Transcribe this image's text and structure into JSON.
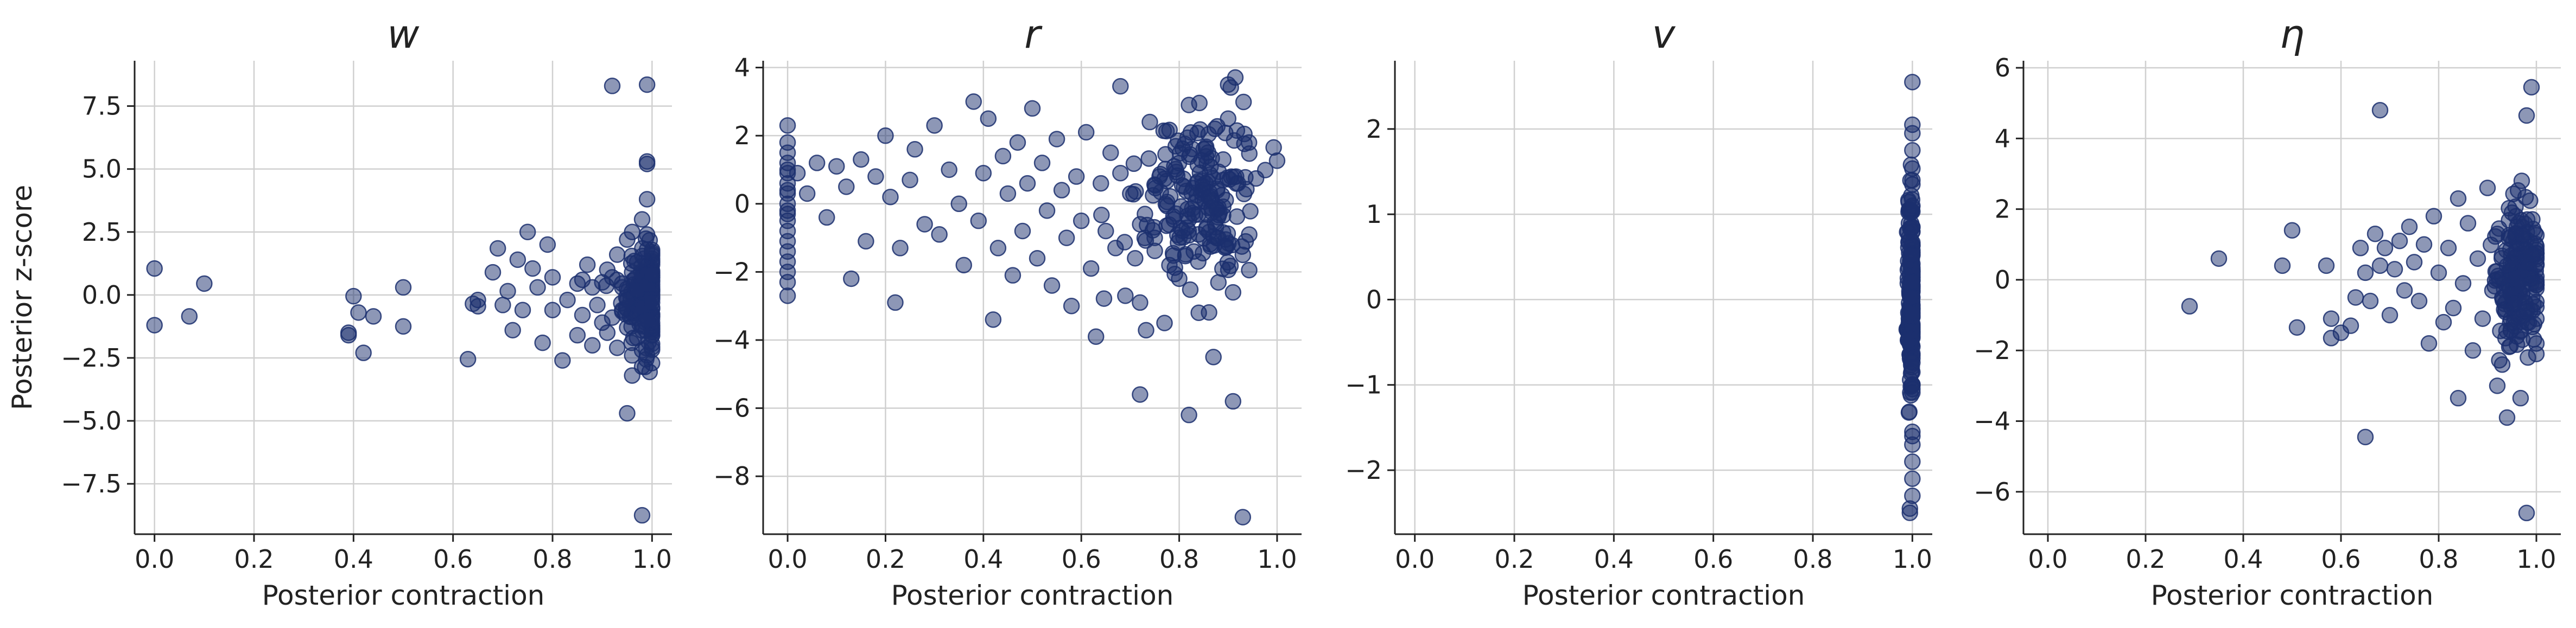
{
  "figure": {
    "ylabel": "Posterior z-score",
    "point_color": "#1b2f6e"
  },
  "chart_data": [
    {
      "type": "scatter",
      "title": "w",
      "xlabel": "Posterior contraction",
      "ylabel": "Posterior z-score",
      "xlim": [
        -0.04,
        1.04
      ],
      "ylim": [
        -9.5,
        9.3
      ],
      "xticks": [
        0.0,
        0.2,
        0.4,
        0.6,
        0.8,
        1.0
      ],
      "xtick_labels": [
        "0.0",
        "0.2",
        "0.4",
        "0.6",
        "0.8",
        "1.0"
      ],
      "yticks": [
        -7.5,
        -5.0,
        -2.5,
        0.0,
        2.5,
        5.0,
        7.5
      ],
      "ytick_labels": [
        "−7.5",
        "−5.0",
        "−2.5",
        "0.0",
        "2.5",
        "5.0",
        "7.5"
      ],
      "grid": true,
      "x": [
        0.0,
        0.0,
        0.07,
        0.1,
        0.39,
        0.39,
        0.4,
        0.41,
        0.42,
        0.44,
        0.5,
        0.5,
        0.63,
        0.64,
        0.65,
        0.65,
        0.68,
        0.69,
        0.7,
        0.71,
        0.72,
        0.73,
        0.74,
        0.75,
        0.76,
        0.77,
        0.78,
        0.79,
        0.8,
        0.8,
        0.82,
        0.83,
        0.85,
        0.85,
        0.86,
        0.86,
        0.87,
        0.88,
        0.88,
        0.89,
        0.9,
        0.9,
        0.91,
        0.91,
        0.92,
        0.92,
        0.93,
        0.93,
        0.94,
        0.94,
        0.95,
        0.95,
        0.95,
        0.96,
        0.96,
        0.96,
        0.97,
        0.97,
        0.97,
        0.98,
        0.98,
        0.98,
        0.99,
        0.99,
        0.99,
        0.99,
        0.99,
        0.99,
        1.0,
        1.0,
        0.92,
        0.99,
        0.99,
        0.99,
        0.95,
        0.98,
        0.98,
        0.96
      ],
      "y": [
        1.05,
        -1.2,
        -0.85,
        0.45,
        -1.5,
        -1.6,
        -0.05,
        -0.7,
        -2.3,
        -0.85,
        0.3,
        -1.25,
        -2.55,
        -0.35,
        -0.45,
        -0.2,
        0.9,
        1.85,
        -0.4,
        0.15,
        -1.4,
        1.4,
        -0.6,
        2.5,
        1.05,
        0.3,
        -1.9,
        2.0,
        -0.6,
        0.7,
        -2.6,
        -0.2,
        0.45,
        -1.6,
        0.6,
        -0.8,
        1.2,
        -2.0,
        0.3,
        -0.4,
        0.5,
        -1.1,
        1.0,
        -1.5,
        0.7,
        -0.9,
        -2.1,
        1.6,
        0.3,
        -0.6,
        2.2,
        -0.2,
        -1.3,
        0.9,
        -2.4,
        2.5,
        1.3,
        -1.7,
        0.2,
        -0.5,
        3.0,
        -2.2,
        1.8,
        -1.0,
        0.4,
        2.4,
        -2.4,
        3.8,
        -0.3,
        0.8,
        8.3,
        8.35,
        5.3,
        5.2,
        -4.7,
        -8.75,
        -2.85,
        -3.2
      ],
      "cluster": {
        "x_center": 0.985,
        "x_spread": 0.022,
        "y_center": 0.0,
        "y_spread": 1.0,
        "count": 170
      }
    },
    {
      "type": "scatter",
      "title": "r",
      "xlabel": "Posterior contraction",
      "ylabel": "",
      "xlim": [
        -0.05,
        1.05
      ],
      "ylim": [
        -9.7,
        4.2
      ],
      "xticks": [
        0.0,
        0.2,
        0.4,
        0.6,
        0.8,
        1.0
      ],
      "xtick_labels": [
        "0.0",
        "0.2",
        "0.4",
        "0.6",
        "0.8",
        "1.0"
      ],
      "yticks": [
        -8,
        -6,
        -4,
        -2,
        0,
        2,
        4
      ],
      "ytick_labels": [
        "−8",
        "−6",
        "−4",
        "−2",
        "0",
        "2",
        "4"
      ],
      "grid": true,
      "x": [
        0.0,
        0.0,
        0.0,
        0.0,
        0.0,
        0.0,
        0.0,
        0.0,
        0.0,
        0.0,
        0.0,
        0.0,
        0.0,
        0.0,
        0.0,
        0.0,
        0.0,
        0.0,
        0.0,
        0.0,
        0.02,
        0.04,
        0.06,
        0.08,
        0.1,
        0.12,
        0.13,
        0.15,
        0.16,
        0.18,
        0.2,
        0.21,
        0.22,
        0.23,
        0.25,
        0.26,
        0.28,
        0.3,
        0.31,
        0.33,
        0.35,
        0.36,
        0.38,
        0.39,
        0.4,
        0.41,
        0.42,
        0.43,
        0.44,
        0.45,
        0.46,
        0.47,
        0.48,
        0.49,
        0.5,
        0.51,
        0.52,
        0.53,
        0.54,
        0.55,
        0.56,
        0.57,
        0.58,
        0.59,
        0.6,
        0.61,
        0.62,
        0.63,
        0.64,
        0.65,
        0.66,
        0.67,
        0.68,
        0.69,
        0.7,
        0.71,
        0.72,
        0.73,
        0.74,
        0.75,
        0.76,
        0.77,
        0.78,
        0.79,
        0.8,
        0.81,
        0.82,
        0.83,
        0.84,
        0.85,
        0.86,
        0.87,
        0.88,
        0.89,
        0.9,
        0.91,
        0.92,
        0.93,
        0.68,
        0.9,
        0.82,
        0.93,
        0.91,
        0.72
      ],
      "y": [
        2.3,
        1.8,
        1.5,
        1.2,
        0.9,
        0.6,
        0.3,
        0.0,
        -0.3,
        -0.5,
        -0.8,
        -1.1,
        -1.7,
        -2.0,
        -2.3,
        -2.7,
        1.0,
        0.4,
        -0.2,
        -1.4,
        0.9,
        0.3,
        1.2,
        -0.4,
        1.1,
        0.5,
        -2.2,
        1.3,
        -1.1,
        0.8,
        2.0,
        0.2,
        -2.9,
        -1.3,
        0.7,
        1.6,
        -0.6,
        2.3,
        -0.9,
        1.0,
        0.0,
        -1.8,
        3.0,
        -0.5,
        0.9,
        2.5,
        -3.4,
        -1.3,
        1.4,
        0.3,
        -2.1,
        1.8,
        -0.8,
        0.6,
        2.8,
        -1.6,
        1.2,
        -0.2,
        -2.4,
        1.9,
        0.4,
        -1.0,
        -3.0,
        0.8,
        -0.5,
        2.1,
        -1.9,
        -3.9,
        0.6,
        -0.8,
        1.5,
        -1.3,
        0.9,
        -2.7,
        0.3,
        -1.6,
        -2.9,
        -0.3,
        2.4,
        -1.0,
        0.8,
        -3.5,
        -1.8,
        1.1,
        -2.2,
        0.5,
        2.9,
        -1.4,
        -3.2,
        1.6,
        0.2,
        -4.5,
        -1.0,
        1.3,
        2.5,
        -2.6,
        0.6,
        -1.5,
        3.45,
        3.5,
        -6.2,
        -9.2,
        -5.8,
        -5.6
      ],
      "cluster": {
        "x_center": 0.84,
        "x_spread": 0.06,
        "y_center": 0.2,
        "y_spread": 1.3,
        "count": 190
      }
    },
    {
      "type": "scatter",
      "title": "v",
      "xlabel": "Posterior contraction",
      "ylabel": "",
      "xlim": [
        -0.04,
        1.04
      ],
      "ylim": [
        -2.75,
        2.8
      ],
      "xticks": [
        0.0,
        0.2,
        0.4,
        0.6,
        0.8,
        1.0
      ],
      "xtick_labels": [
        "0.0",
        "0.2",
        "0.4",
        "0.6",
        "0.8",
        "1.0"
      ],
      "yticks": [
        -2,
        -1,
        0,
        1,
        2
      ],
      "ytick_labels": [
        "−2",
        "−1",
        "0",
        "1",
        "2"
      ],
      "grid": true,
      "x": [
        1.0,
        1.0,
        1.0,
        1.0,
        1.0,
        1.0,
        1.0,
        1.0,
        1.0,
        1.0,
        1.0,
        1.0,
        0.995,
        0.995,
        1.0,
        1.0
      ],
      "y": [
        2.55,
        2.05,
        1.95,
        1.75,
        1.4,
        1.35,
        0.85,
        -1.55,
        -1.6,
        -1.9,
        -2.1,
        -2.3,
        -2.45,
        -2.5,
        -1.7,
        1.1
      ],
      "cluster": {
        "x_center": 0.998,
        "x_spread": 0.004,
        "y_center": 0.0,
        "y_spread": 0.6,
        "count": 230
      }
    },
    {
      "type": "scatter",
      "title": "η",
      "xlabel": "Posterior contraction",
      "ylabel": "",
      "xlim": [
        -0.05,
        1.05
      ],
      "ylim": [
        -7.2,
        6.2
      ],
      "xticks": [
        0.0,
        0.2,
        0.4,
        0.6,
        0.8,
        1.0
      ],
      "xtick_labels": [
        "0.0",
        "0.2",
        "0.4",
        "0.6",
        "0.8",
        "1.0"
      ],
      "yticks": [
        -6,
        -4,
        -2,
        0,
        2,
        4,
        6
      ],
      "ytick_labels": [
        "−6",
        "−4",
        "−2",
        "0",
        "2",
        "4",
        "6"
      ],
      "grid": true,
      "x": [
        0.29,
        0.35,
        0.48,
        0.5,
        0.51,
        0.57,
        0.58,
        0.58,
        0.6,
        0.62,
        0.63,
        0.64,
        0.65,
        0.66,
        0.67,
        0.68,
        0.69,
        0.7,
        0.71,
        0.72,
        0.73,
        0.74,
        0.75,
        0.76,
        0.77,
        0.78,
        0.79,
        0.8,
        0.81,
        0.82,
        0.83,
        0.84,
        0.85,
        0.86,
        0.87,
        0.88,
        0.89,
        0.9,
        0.91,
        0.92,
        0.93,
        0.94,
        0.95,
        0.96,
        0.97,
        0.98,
        0.99,
        1.0,
        0.65,
        0.68,
        0.84,
        0.92,
        0.94,
        0.98,
        0.98,
        0.99
      ],
      "y": [
        -0.75,
        0.6,
        0.4,
        1.4,
        -1.35,
        0.4,
        -1.1,
        -1.65,
        -1.5,
        -1.3,
        -0.5,
        0.9,
        0.2,
        -0.6,
        1.3,
        0.4,
        0.9,
        -1.0,
        0.3,
        1.1,
        -0.3,
        1.5,
        0.5,
        -0.6,
        1.0,
        -1.8,
        1.8,
        0.2,
        -1.2,
        0.9,
        -0.8,
        2.3,
        -0.1,
        1.6,
        -2.0,
        0.6,
        -1.1,
        2.6,
        -0.3,
        1.3,
        -2.4,
        0.4,
        1.9,
        -1.6,
        2.8,
        -0.9,
        0.7,
        -2.1,
        -4.45,
        4.8,
        -3.35,
        -3.0,
        -3.9,
        4.65,
        -6.6,
        5.45
      ],
      "cluster": {
        "x_center": 0.965,
        "x_spread": 0.025,
        "y_center": 0.0,
        "y_spread": 1.0,
        "count": 200
      }
    }
  ]
}
